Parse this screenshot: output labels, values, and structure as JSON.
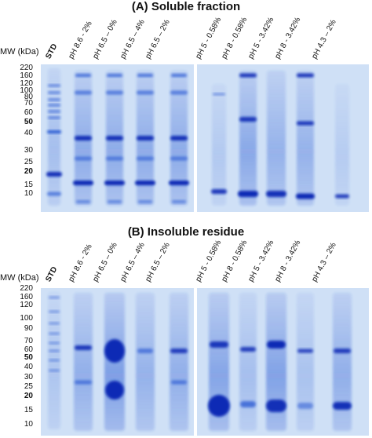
{
  "panel_a": {
    "title": "(A) Soluble fraction",
    "mw_header": "MW (kDa)",
    "markers": [
      "220",
      "160",
      "120",
      "100",
      "80",
      "70",
      "60",
      "50",
      "40",
      "30",
      "25",
      "20",
      "15",
      "10"
    ],
    "bold_markers": [
      "50",
      "20"
    ],
    "lanes": [
      "STD",
      "pH 8.6 - 2%",
      "pH 6.5 – 0%",
      "pH 6.5 – 4%",
      "pH 6.5 – 2%",
      "pH 5 - 0.58%",
      "pH 8 - 0.58%",
      "pH 5 - 3.42%",
      "pH 8 - 3.42%",
      "pH 4.3 – 2%"
    ]
  },
  "panel_b": {
    "title": "(B) Insoluble residue",
    "mw_header": "MW (kDa)",
    "markers": [
      "220",
      "160",
      "120",
      "100",
      "90",
      "70",
      "60",
      "50",
      "40",
      "30",
      "25",
      "20",
      "15",
      "10"
    ],
    "bold_markers": [
      "50",
      "20"
    ],
    "lanes": [
      "STD",
      "pH 8.6 - 2%",
      "pH 6.5 – 0%",
      "pH 6.5 – 4%",
      "pH 6.5 – 2%",
      "pH 5 - 0.58%",
      "pH 8 - 0.58%",
      "pH 5 - 3.42%",
      "pH 8 - 3.42%",
      "pH 4.3 – 2%"
    ]
  },
  "colors": {
    "gel_background": "#cfe0f6",
    "stain": "#1f4fd0",
    "dark_band": "#0a2bb5"
  }
}
